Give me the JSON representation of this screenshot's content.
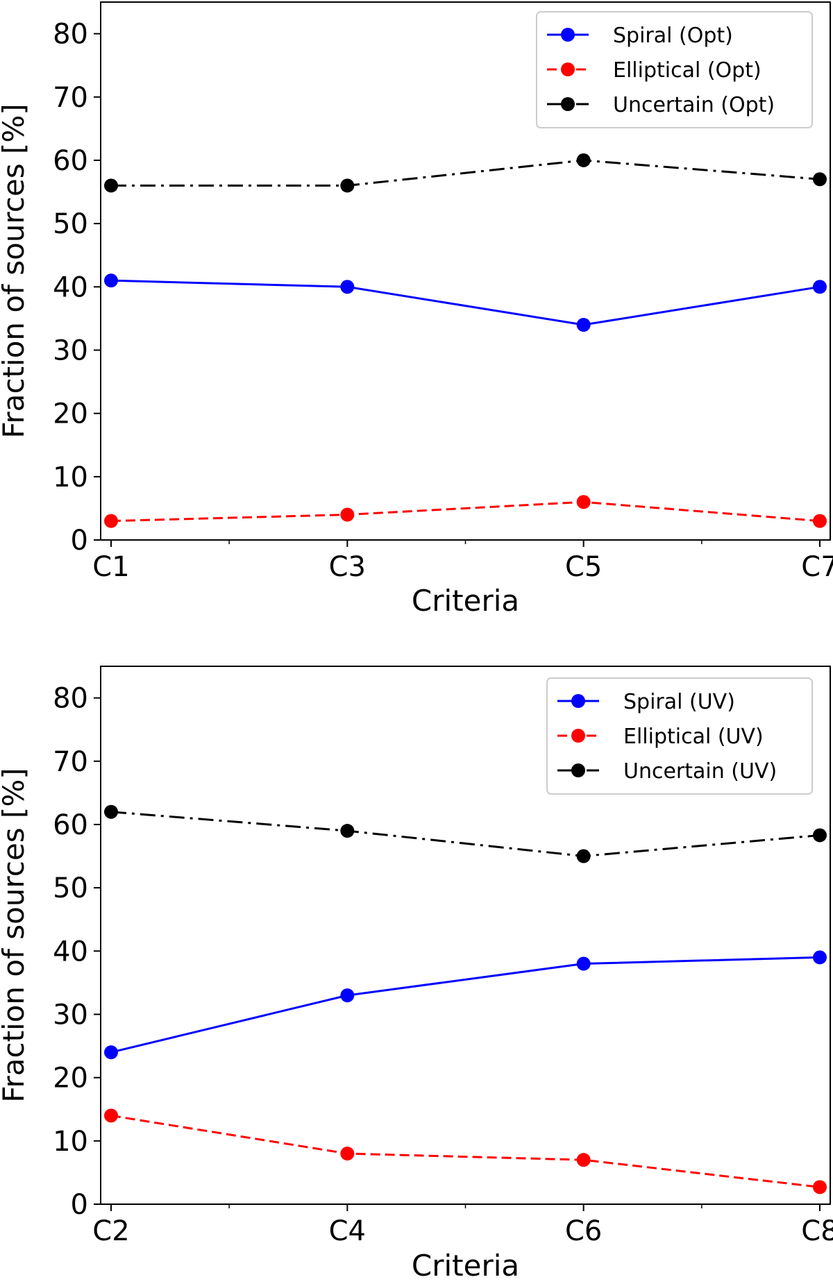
{
  "chart_data": [
    {
      "type": "line",
      "title": "",
      "xlabel": "Criteria",
      "ylabel": "Fraction of sources [%]",
      "categories": [
        "C1",
        "C3",
        "C5",
        "C7"
      ],
      "ylim": [
        0,
        85
      ],
      "yticks": [
        0,
        10,
        20,
        30,
        40,
        50,
        60,
        70,
        80
      ],
      "legend_position": "top-right",
      "series": [
        {
          "name": "Spiral (Opt)",
          "color": "#0000ff",
          "linestyle": "solid",
          "values": [
            41,
            40,
            34,
            40
          ]
        },
        {
          "name": "Elliptical (Opt)",
          "color": "#ff0000",
          "linestyle": "dashed",
          "values": [
            3,
            4,
            6,
            3
          ]
        },
        {
          "name": "Uncertain (Opt)",
          "color": "#000000",
          "linestyle": "dashdot",
          "values": [
            56,
            56,
            60,
            57
          ]
        }
      ]
    },
    {
      "type": "line",
      "title": "",
      "xlabel": "Criteria",
      "ylabel": "Fraction of sources [%]",
      "categories": [
        "C2",
        "C4",
        "C6",
        "C8"
      ],
      "ylim": [
        0,
        85
      ],
      "yticks": [
        0,
        10,
        20,
        30,
        40,
        50,
        60,
        70,
        80
      ],
      "legend_position": "top-right",
      "series": [
        {
          "name": "Spiral (UV)",
          "color": "#0000ff",
          "linestyle": "solid",
          "values": [
            24,
            33,
            38,
            39
          ]
        },
        {
          "name": "Elliptical (UV)",
          "color": "#ff0000",
          "linestyle": "dashed",
          "values": [
            14,
            8,
            7,
            2.7
          ]
        },
        {
          "name": "Uncertain (UV)",
          "color": "#000000",
          "linestyle": "dashdot",
          "values": [
            62,
            59,
            55,
            58.3
          ]
        }
      ]
    }
  ]
}
